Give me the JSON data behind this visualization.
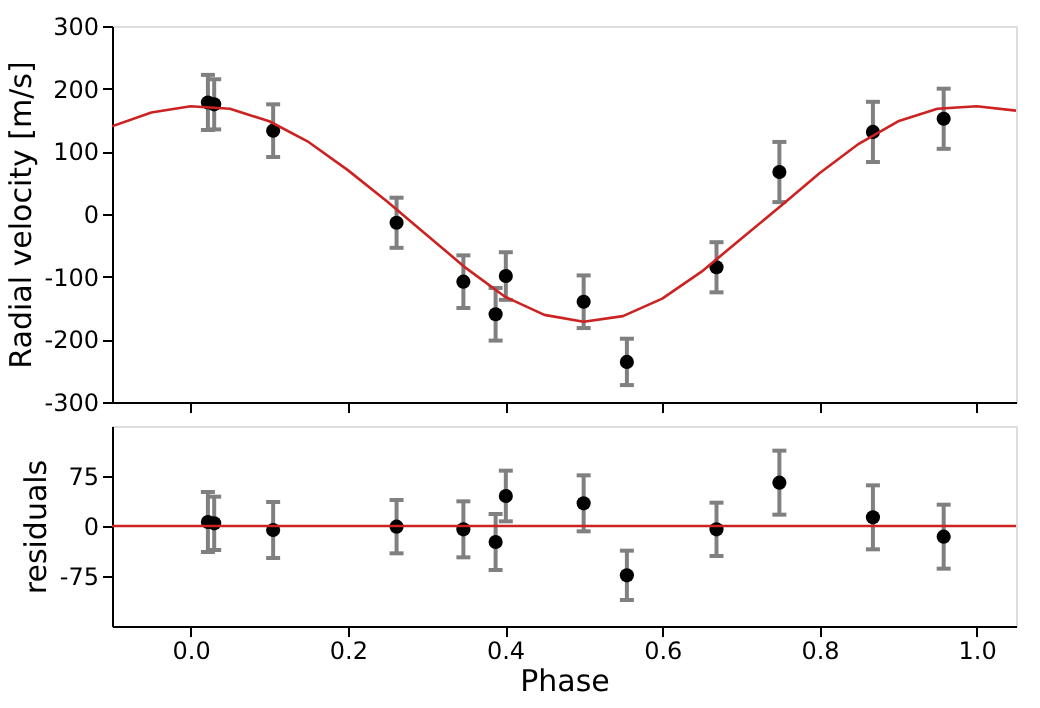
{
  "chart_data": [
    {
      "type": "scatter",
      "ylabel": "Radial velocity [m/s]",
      "xlim": [
        -0.1,
        1.05
      ],
      "xticks": [
        0,
        0.2,
        0.4,
        0.6,
        0.8,
        1
      ],
      "ylim": [
        -300,
        300
      ],
      "yticks": [
        -300,
        -200,
        -100,
        0,
        100,
        200,
        300
      ],
      "tick_labels": "y",
      "grid": false,
      "series": [
        {
          "marker": "circle",
          "color": "#000000",
          "x": [
            0.022,
            0.03,
            0.105,
            0.262,
            0.347,
            0.388,
            0.401,
            0.5,
            0.555,
            0.669,
            0.749,
            0.868,
            0.958
          ],
          "values": [
            178,
            175,
            133,
            -14,
            -108,
            -160,
            -99,
            -140,
            -236,
            -85,
            67,
            131,
            152
          ],
          "errors": [
            44,
            40,
            42,
            40,
            42,
            42,
            38,
            42,
            37,
            40,
            48,
            48,
            48
          ]
        },
        {
          "type": "line",
          "marker": "none",
          "color": "#cc2222",
          "x": [
            -0.1,
            -0.05,
            0.0,
            0.05,
            0.1,
            0.15,
            0.2,
            0.25,
            0.3,
            0.35,
            0.4,
            0.45,
            0.5,
            0.55,
            0.6,
            0.65,
            0.7,
            0.75,
            0.8,
            0.85,
            0.9,
            0.95,
            1.0,
            1.05
          ],
          "values": [
            140,
            162,
            172,
            168,
            148,
            115,
            70,
            20,
            -33,
            -86,
            -132,
            -161,
            -172,
            -163,
            -135,
            -92,
            -40,
            12,
            65,
            112,
            148,
            168,
            172,
            165
          ]
        }
      ]
    },
    {
      "type": "scatter",
      "xlabel": "Phase",
      "ylabel": "residuals",
      "xlim": [
        -0.1,
        1.05
      ],
      "xticks": [
        {
          "value": 0,
          "label": "0.0"
        },
        0.2,
        0.4,
        0.6,
        0.8,
        {
          "value": 1,
          "label": "1.0"
        }
      ],
      "ylim": [
        -150,
        150
      ],
      "yticks": [
        -75,
        0,
        75
      ],
      "grid": false,
      "series": [
        {
          "marker": "circle",
          "color": "#000000",
          "x": [
            0.022,
            0.03,
            0.105,
            0.262,
            0.347,
            0.388,
            0.401,
            0.5,
            0.555,
            0.669,
            0.749,
            0.868,
            0.958
          ],
          "values": [
            6,
            4,
            -6,
            -1,
            -5,
            -24,
            45,
            34,
            -74,
            -5,
            65,
            13,
            -16
          ],
          "errors": [
            45,
            40,
            42,
            40,
            42,
            42,
            38,
            42,
            37,
            40,
            48,
            48,
            48
          ]
        },
        {
          "type": "line",
          "marker": "none",
          "color": "#cc2222",
          "x": [
            -0.1,
            1.05
          ],
          "values": [
            0,
            0
          ]
        }
      ]
    }
  ]
}
